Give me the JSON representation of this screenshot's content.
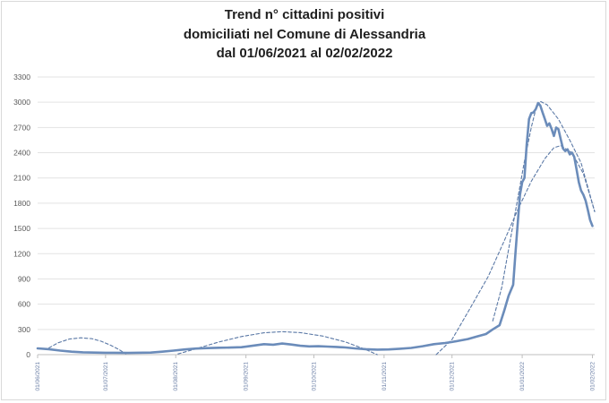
{
  "chart_data": {
    "type": "line",
    "title_lines": [
      "Trend n° cittadini positivi",
      "domiciliati nel Comune di Alessandria",
      "dal 01/06/2021 al 02/02/2022"
    ],
    "xlabel": "",
    "ylabel": "",
    "ylim": [
      0,
      3300
    ],
    "yticks": [
      0,
      300,
      600,
      900,
      1200,
      1500,
      1800,
      2100,
      2400,
      2700,
      3000,
      3300
    ],
    "ytick_labels": [
      "0",
      "300",
      "600",
      "900",
      "1200",
      "1500",
      "1800",
      "2100",
      "2400",
      "2700",
      "3000",
      "3300"
    ],
    "xticks": [
      {
        "label": "01/06/2021",
        "day": 0
      },
      {
        "label": "01/07/2021",
        "day": 30
      },
      {
        "label": "01/08/2021",
        "day": 61
      },
      {
        "label": "01/09/2021",
        "day": 92
      },
      {
        "label": "01/10/2021",
        "day": 122
      },
      {
        "label": "01/11/2021",
        "day": 153
      },
      {
        "label": "01/12/2021",
        "day": 183
      },
      {
        "label": "01/01/2022",
        "day": 214
      },
      {
        "label": "01/02/2022",
        "day": 245
      }
    ],
    "x_range_days": [
      0,
      246
    ],
    "grid": "horizontal",
    "legend": "none",
    "series": [
      {
        "style": "solid",
        "color": "#6b8cba",
        "points": [
          [
            0,
            75
          ],
          [
            5,
            65
          ],
          [
            10,
            48
          ],
          [
            15,
            35
          ],
          [
            20,
            28
          ],
          [
            25,
            24
          ],
          [
            30,
            22
          ],
          [
            40,
            20
          ],
          [
            50,
            25
          ],
          [
            55,
            35
          ],
          [
            60,
            48
          ],
          [
            65,
            62
          ],
          [
            70,
            72
          ],
          [
            75,
            78
          ],
          [
            80,
            82
          ],
          [
            85,
            84
          ],
          [
            90,
            88
          ],
          [
            92,
            95
          ],
          [
            96,
            110
          ],
          [
            100,
            125
          ],
          [
            104,
            118
          ],
          [
            108,
            132
          ],
          [
            112,
            120
          ],
          [
            116,
            105
          ],
          [
            120,
            98
          ],
          [
            124,
            100
          ],
          [
            128,
            96
          ],
          [
            132,
            92
          ],
          [
            136,
            85
          ],
          [
            140,
            75
          ],
          [
            145,
            65
          ],
          [
            150,
            60
          ],
          [
            155,
            62
          ],
          [
            160,
            70
          ],
          [
            165,
            80
          ],
          [
            170,
            100
          ],
          [
            175,
            125
          ],
          [
            180,
            138
          ],
          [
            183,
            150
          ],
          [
            186,
            165
          ],
          [
            190,
            185
          ],
          [
            194,
            215
          ],
          [
            198,
            245
          ],
          [
            201,
            300
          ],
          [
            204,
            350
          ],
          [
            206,
            520
          ],
          [
            208,
            700
          ],
          [
            210,
            830
          ],
          [
            211,
            1200
          ],
          [
            212,
            1550
          ],
          [
            213,
            1900
          ],
          [
            214,
            2050
          ],
          [
            215,
            2100
          ],
          [
            216,
            2500
          ],
          [
            217,
            2800
          ],
          [
            218,
            2870
          ],
          [
            219,
            2880
          ],
          [
            220,
            2920
          ],
          [
            221,
            2990
          ],
          [
            222,
            2960
          ],
          [
            223,
            2880
          ],
          [
            224,
            2800
          ],
          [
            225,
            2720
          ],
          [
            226,
            2750
          ],
          [
            227,
            2680
          ],
          [
            228,
            2600
          ],
          [
            229,
            2700
          ],
          [
            230,
            2680
          ],
          [
            231,
            2560
          ],
          [
            232,
            2450
          ],
          [
            233,
            2420
          ],
          [
            234,
            2440
          ],
          [
            235,
            2380
          ],
          [
            236,
            2400
          ],
          [
            237,
            2350
          ],
          [
            238,
            2200
          ],
          [
            239,
            2050
          ],
          [
            240,
            1950
          ],
          [
            241,
            1900
          ],
          [
            242,
            1830
          ],
          [
            243,
            1720
          ],
          [
            244,
            1600
          ],
          [
            245,
            1530
          ]
        ]
      },
      {
        "style": "dashed",
        "color": "#5b79a6",
        "points": [
          [
            5,
            80
          ],
          [
            9,
            140
          ],
          [
            14,
            185
          ],
          [
            19,
            200
          ],
          [
            24,
            190
          ],
          [
            28,
            160
          ],
          [
            32,
            115
          ],
          [
            36,
            60
          ],
          [
            39,
            10
          ]
        ]
      },
      {
        "style": "dashed",
        "color": "#5b79a6",
        "points": [
          [
            62,
            8
          ],
          [
            70,
            70
          ],
          [
            80,
            150
          ],
          [
            90,
            215
          ],
          [
            100,
            260
          ],
          [
            108,
            272
          ],
          [
            116,
            262
          ],
          [
            126,
            220
          ],
          [
            136,
            150
          ],
          [
            144,
            70
          ],
          [
            150,
            0
          ]
        ]
      },
      {
        "style": "dashed",
        "color": "#5b79a6",
        "points": [
          [
            176,
            0
          ],
          [
            183,
            180
          ],
          [
            191,
            550
          ],
          [
            199,
            930
          ],
          [
            206,
            1350
          ],
          [
            212,
            1720
          ],
          [
            218,
            2060
          ],
          [
            224,
            2330
          ],
          [
            228,
            2460
          ],
          [
            231,
            2485
          ],
          [
            236,
            2400
          ],
          [
            241,
            2150
          ],
          [
            246,
            1700
          ]
        ]
      },
      {
        "style": "dashed",
        "color": "#5b79a6",
        "points": [
          [
            201,
            400
          ],
          [
            205,
            800
          ],
          [
            209,
            1400
          ],
          [
            212,
            1850
          ],
          [
            215,
            2300
          ],
          [
            218,
            2700
          ],
          [
            220,
            2920
          ],
          [
            222,
            3010
          ],
          [
            225,
            2970
          ],
          [
            230,
            2800
          ],
          [
            235,
            2550
          ],
          [
            240,
            2280
          ],
          [
            246,
            1700
          ]
        ]
      }
    ]
  }
}
